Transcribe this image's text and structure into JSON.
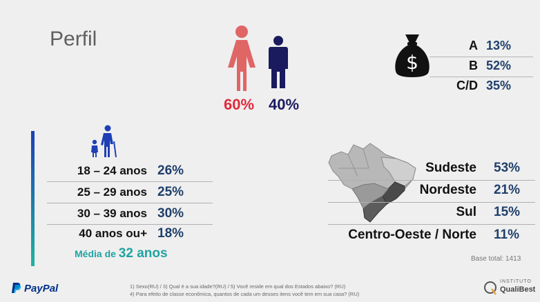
{
  "page": {
    "title": "Perfil"
  },
  "gender": {
    "female": {
      "value": "60%",
      "icon": "woman-icon",
      "color": "#e06666"
    },
    "male": {
      "value": "40%",
      "icon": "man-icon",
      "color": "#1a1a5e"
    }
  },
  "economic_class": {
    "icon": "money-bag-icon",
    "rows": [
      {
        "label": "A",
        "value": "13%"
      },
      {
        "label": "B",
        "value": "52%"
      },
      {
        "label": "C/D",
        "value": "35%"
      }
    ]
  },
  "age": {
    "icon": "family-age-icon",
    "rows": [
      {
        "label": "18 – 24 anos",
        "value": "26%"
      },
      {
        "label": "25 – 29 anos",
        "value": "25%"
      },
      {
        "label": "30 – 39 anos",
        "value": "30%"
      },
      {
        "label": "40 anos ou+",
        "value": "18%"
      }
    ],
    "average_prefix": "Média de",
    "average_value": "32 anos"
  },
  "region": {
    "icon": "brazil-map-icon",
    "rows": [
      {
        "label": "Sudeste",
        "value": "53%"
      },
      {
        "label": "Nordeste",
        "value": "21%"
      },
      {
        "label": "Sul",
        "value": "15%"
      },
      {
        "label": "Centro-Oeste / Norte",
        "value": "11%"
      }
    ]
  },
  "base_total": "Base total: 1413",
  "footnotes": {
    "line1": "1) Sexo(RU) / 3) Qual é a sua idade?(RU) / 5) Você reside em qual dos Estados abaixo? (RU)",
    "line2": "4) Para efeito de classe econômica, quantos de cada um desses itens você tem em sua casa? (RU)"
  },
  "logos": {
    "paypal": "PayPal",
    "institute_small": "INSTITUTO",
    "institute_name": "QualiBest"
  },
  "colors": {
    "accent_blue": "#1f3f6b",
    "teal": "#1fa3a1",
    "gradient_top": "#1e3fb5",
    "gradient_bottom": "#1fb3a0"
  }
}
